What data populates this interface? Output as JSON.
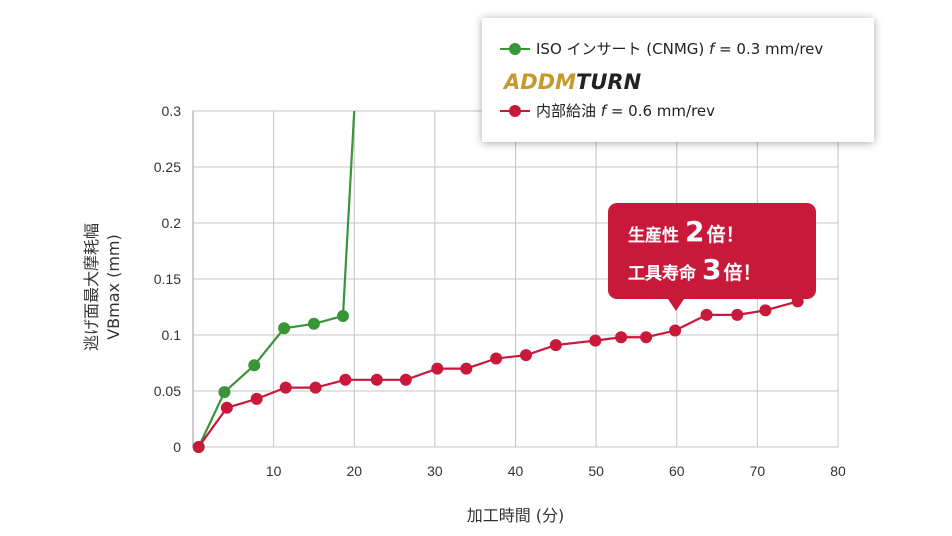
{
  "chart_data": {
    "type": "line",
    "xlabel": "加工時間 (分)",
    "ylabel_lines": [
      "逃げ面最大摩耗幅",
      "VBmax (mm)"
    ],
    "xlim": [
      0,
      80
    ],
    "ylim": [
      0,
      0.3
    ],
    "x_ticks": [
      10,
      20,
      30,
      40,
      50,
      60,
      70,
      80
    ],
    "y_ticks": [
      0,
      0.05,
      0.1,
      0.15,
      0.2,
      0.25,
      0.3
    ],
    "x_tick_labels": [
      "10",
      "20",
      "30",
      "40",
      "50",
      "60",
      "70",
      "80"
    ],
    "y_tick_labels": [
      "0",
      "0.05",
      "0.1",
      "0.15",
      "0.2",
      "0.25",
      "0.3"
    ],
    "grid": true,
    "series": [
      {
        "name": "ISO インサート (CNMG) f = 0.3 mm/rev",
        "color": "#3a9438",
        "x": [
          0.7,
          3.9,
          7.6,
          11.3,
          15.0,
          18.6
        ],
        "y": [
          0,
          0.049,
          0.073,
          0.106,
          0.11,
          0.117
        ],
        "tail": {
          "x": [
            18.6,
            20.0
          ],
          "y": [
            0.117,
            0.3
          ]
        }
      },
      {
        "name": "内部給油 f = 0.6 mm/rev",
        "color": "#c8193a",
        "x": [
          0.7,
          4.2,
          7.9,
          11.5,
          15.2,
          18.9,
          22.8,
          26.4,
          30.3,
          33.9,
          37.6,
          41.3,
          45.0,
          49.9,
          53.1,
          56.2,
          59.8,
          63.7,
          67.5,
          71.0,
          75.0
        ],
        "y": [
          0,
          0.035,
          0.043,
          0.053,
          0.053,
          0.06,
          0.06,
          0.06,
          0.07,
          0.07,
          0.079,
          0.082,
          0.091,
          0.095,
          0.098,
          0.098,
          0.104,
          0.118,
          0.118,
          0.122,
          0.13
        ]
      }
    ]
  },
  "legend": {
    "iso_prefix": "ISO インサート (CNMG) ",
    "iso_f": "f",
    "iso_suffix": " = 0.3 mm/rev",
    "logo_a": "ADDM",
    "logo_b": "TURN",
    "coolant_prefix": "内部給油 ",
    "coolant_f": "f",
    "coolant_suffix": " = 0.6 mm/rev"
  },
  "callout": {
    "line1_text": "生産性",
    "line1_num": "2",
    "line1_end": "倍！",
    "line2_text": "工具寿命",
    "line2_num": "3",
    "line2_end": "倍！"
  }
}
